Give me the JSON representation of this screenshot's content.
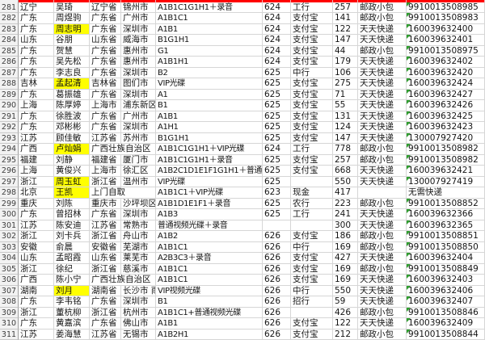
{
  "colors": {
    "highlight_yellow": "#ffff00",
    "text_flag_green": "#2f9e2f",
    "top_partial_row_red": "#ff0000",
    "gridline": "#d6d6d6"
  },
  "top_partial_row": {
    "fill": "#ff0000",
    "note_visible_pixels": "bottom sliver of red-filled cells of row above"
  },
  "rows": [
    {
      "n": "281",
      "prov": "辽宁",
      "name": "吴琦",
      "hl": false,
      "addr1": "辽宁省",
      "addr2": "锦州市",
      "span": false,
      "items": "A1B1C1G1H1＋录音",
      "batch": "624",
      "pay": "工行",
      "amt": "257",
      "ship": "邮政小包",
      "trk": "9910013508985",
      "flag": true
    },
    {
      "n": "282",
      "prov": "广东",
      "name": "周煜驹",
      "hl": false,
      "addr1": "广东省",
      "addr2": "广州市",
      "span": false,
      "items": "A1B1C1",
      "batch": "624",
      "pay": "支付宝",
      "amt": "141",
      "ship": "邮政小包",
      "trk": "9910013508983",
      "flag": true
    },
    {
      "n": "283",
      "prov": "广东",
      "name": "周志明",
      "hl": true,
      "addr1": "广东省",
      "addr2": "深圳市",
      "span": false,
      "items": "A1B1",
      "batch": "624",
      "pay": "支付宝",
      "amt": "122",
      "ship": "天天快递",
      "trk": "160039632400",
      "flag": true
    },
    {
      "n": "284",
      "prov": "山东",
      "name": "谷朋",
      "hl": false,
      "addr1": "山东省",
      "addr2": "威海市",
      "span": false,
      "items": "B1G1H1",
      "batch": "624",
      "pay": "支付宝",
      "amt": "147",
      "ship": "天天快递",
      "trk": "160039632401",
      "flag": true
    },
    {
      "n": "285",
      "prov": "广东",
      "name": "贺慧",
      "hl": false,
      "addr1": "广东省",
      "addr2": "惠州市",
      "span": false,
      "items": "G1",
      "batch": "624",
      "pay": "支付宝",
      "amt": "44",
      "ship": "邮政小包",
      "trk": "9910013508975",
      "flag": true
    },
    {
      "n": "286",
      "prov": "广东",
      "name": "吴先松",
      "hl": false,
      "addr1": "广东省",
      "addr2": "惠州市",
      "span": false,
      "items": "A1B1H1",
      "batch": "624",
      "pay": "支付宝",
      "amt": "179",
      "ship": "天天快递",
      "trk": "160039632402",
      "flag": true
    },
    {
      "n": "287",
      "prov": "广东",
      "name": "李志良",
      "hl": false,
      "addr1": "广东省",
      "addr2": "深圳市",
      "span": false,
      "items": "B2",
      "batch": "625",
      "pay": "中行",
      "amt": "106",
      "ship": "天天快递",
      "trk": "160039632420",
      "flag": true
    },
    {
      "n": "288",
      "prov": "吉林",
      "name": "孟起清",
      "hl": true,
      "addr1": "吉林省",
      "addr2": "图们市",
      "span": false,
      "items": "VIP光碟",
      "batch": "625",
      "pay": "支付宝",
      "amt": "275",
      "ship": "天天快递",
      "trk": "160039632424",
      "flag": true
    },
    {
      "n": "289",
      "prov": "广东",
      "name": "葛振雄",
      "hl": false,
      "addr1": "广东省",
      "addr2": "深圳市",
      "span": false,
      "items": "A1",
      "batch": "625",
      "pay": "支付宝",
      "amt": "71",
      "ship": "天天快递",
      "trk": "160039632427",
      "flag": true
    },
    {
      "n": "290",
      "prov": "上海",
      "name": "陈厚婷",
      "hl": false,
      "addr1": "上海市",
      "addr2": "浦东新区",
      "span": false,
      "items": "B1",
      "batch": "625",
      "pay": "支付宝",
      "amt": "55",
      "ship": "天天快递",
      "trk": "160039632426",
      "flag": true
    },
    {
      "n": "291",
      "prov": "广东",
      "name": "徐胜波",
      "hl": false,
      "addr1": "广东省",
      "addr2": "广州市",
      "span": false,
      "items": "A1B1",
      "batch": "625",
      "pay": "支付宝",
      "amt": "131",
      "ship": "天天快递",
      "trk": "160039632425",
      "flag": true
    },
    {
      "n": "292",
      "prov": "广东",
      "name": "邓彬彬",
      "hl": false,
      "addr1": "广东省",
      "addr2": "深圳市",
      "span": false,
      "items": "A1H1",
      "batch": "625",
      "pay": "支付宝",
      "amt": "124",
      "ship": "天天快递",
      "trk": "160039632423",
      "flag": true
    },
    {
      "n": "293",
      "prov": "江苏",
      "name": "顾佳敏",
      "hl": false,
      "addr1": "江苏省",
      "addr2": "苏州市",
      "span": false,
      "items": "B1G1H1",
      "batch": "625",
      "pay": "支付宝",
      "amt": "147",
      "ship": "天天快递",
      "trk": "130007927420",
      "flag": true
    },
    {
      "n": "294",
      "prov": "广西",
      "name": "卢灿娟",
      "hl": true,
      "addr1": "广西壮族自治区",
      "addr2": "",
      "span": true,
      "items": "A1B1C1G1H1＋VIP光碟",
      "batch": "624",
      "pay": "工行",
      "amt": "778",
      "ship": "邮政小包",
      "trk": "9910013508982",
      "flag": true
    },
    {
      "n": "295",
      "prov": "福建",
      "name": "刘静",
      "hl": false,
      "addr1": "福建省",
      "addr2": "厦门市",
      "span": false,
      "items": "A1B1C1G1H1＋录音",
      "batch": "625",
      "pay": "支付宝",
      "amt": "257",
      "ship": "邮政小包",
      "trk": "9910013508982",
      "flag": true
    },
    {
      "n": "296",
      "prov": "上海",
      "name": "黄俊兴",
      "hl": false,
      "addr1": "上海市",
      "addr2": "徐汇区",
      "span": false,
      "items": "A1B2C1D1E1F1G1H1＋普通视频光碟",
      "batch": "625",
      "pay": "支付宝",
      "amt": "668",
      "ship": "天天快递",
      "trk": "160039632421",
      "flag": true
    },
    {
      "n": "297",
      "prov": "浙江",
      "name": "周玉虹",
      "hl": true,
      "addr1": "浙江省",
      "addr2": "温州市",
      "span": false,
      "items": "VIP光碟",
      "batch": "625",
      "pay": "",
      "amt": "550",
      "ship": "天天快递",
      "trk": "130007927419",
      "flag": true
    },
    {
      "n": "298",
      "prov": "北京",
      "name": "王凯",
      "hl": true,
      "addr1": "上门自取",
      "addr2": "",
      "span": true,
      "items": "A1B1C1＋VIP光碟",
      "batch": "623",
      "pay": "现金",
      "amt": "417",
      "ship": "",
      "trk": "无需快递",
      "flag": false
    },
    {
      "n": "299",
      "prov": "重庆",
      "name": "刘陈",
      "hl": false,
      "addr1": "重庆市",
      "addr2": "沙坪坝区",
      "span": false,
      "items": "A1B1D1E1F1＋录音",
      "batch": "625",
      "pay": "农行",
      "amt": "223",
      "ship": "邮政小包",
      "trk": "9910013508852",
      "flag": true
    },
    {
      "n": "300",
      "prov": "广东",
      "name": "曾招林",
      "hl": false,
      "addr1": "广东省",
      "addr2": "深圳市",
      "span": false,
      "items": "A1B3",
      "batch": "625",
      "pay": "工行",
      "amt": "241",
      "ship": "天天快递",
      "trk": "160039632366",
      "flag": true
    },
    {
      "n": "301",
      "prov": "江苏",
      "name": "陈安迪",
      "hl": false,
      "addr1": "江苏省",
      "addr2": "常熟市",
      "span": false,
      "items": "普通视频光碟＋录音",
      "batch": "",
      "pay": "",
      "amt": "300",
      "ship": "天天快递",
      "trk": "160039632365",
      "flag": true
    },
    {
      "n": "302",
      "prov": "浙江",
      "name": "刘卡兵",
      "hl": false,
      "addr1": "浙江省",
      "addr2": "舟山市",
      "span": false,
      "items": "A1B2",
      "batch": "626",
      "pay": "支付宝",
      "amt": "186",
      "ship": "邮政小包",
      "trk": "9910013508851",
      "flag": true
    },
    {
      "n": "303",
      "prov": "安徽",
      "name": "俞晨",
      "hl": false,
      "addr1": "安徽省",
      "addr2": "芜湖市",
      "span": false,
      "items": "A1B1C1",
      "batch": "626",
      "pay": "中行",
      "amt": "169",
      "ship": "邮政小包",
      "trk": "9910013508850",
      "flag": true
    },
    {
      "n": "304",
      "prov": "山东",
      "name": "孟昭霞",
      "hl": false,
      "addr1": "山东省",
      "addr2": "莱芜市",
      "span": false,
      "items": "A2B3C3＋录音",
      "batch": "626",
      "pay": "支付宝",
      "amt": "427",
      "ship": "天天快递",
      "trk": "160039632404",
      "flag": true
    },
    {
      "n": "305",
      "prov": "浙江",
      "name": "徐纪",
      "hl": false,
      "addr1": "浙江省",
      "addr2": "慈溪市",
      "span": false,
      "items": "A1B1C1",
      "batch": "626",
      "pay": "支付宝",
      "amt": "169",
      "ship": "邮政小包",
      "trk": "9910013508849",
      "flag": true
    },
    {
      "n": "306",
      "prov": "广西",
      "name": "陈小宁",
      "hl": false,
      "addr1": "广西壮族自治区",
      "addr2": "",
      "span": true,
      "items": "A1B1C1",
      "batch": "626",
      "pay": "支付宝",
      "amt": "169",
      "ship": "天天快递",
      "trk": "160039632403",
      "flag": true
    },
    {
      "n": "307",
      "prov": "湖南",
      "name": "刘月",
      "hl": true,
      "addr1": "湖南省",
      "addr2": "长沙市 雨花区",
      "span": false,
      "items": "VIP视频光碟",
      "batch": "626",
      "pay": "中行",
      "amt": "550",
      "ship": "天天快递",
      "trk": "160039632406",
      "flag": true
    },
    {
      "n": "308",
      "prov": "广东",
      "name": "李韦铭",
      "hl": false,
      "addr1": "广东省",
      "addr2": "深圳市",
      "span": false,
      "items": "B1",
      "batch": "626",
      "pay": "招行",
      "amt": "59",
      "ship": "天天快递",
      "trk": "160039632407",
      "flag": true
    },
    {
      "n": "309",
      "prov": "浙江",
      "name": "董杭柳",
      "hl": false,
      "addr1": "浙江省",
      "addr2": "杭州市",
      "span": false,
      "items": "A1B1C1+普通视频光碟",
      "batch": "626",
      "pay": "",
      "amt": "426",
      "ship": "邮政小包",
      "trk": "9910013508846",
      "flag": true
    },
    {
      "n": "310",
      "prov": "广东",
      "name": "黄嘉滨",
      "hl": false,
      "addr1": "广东省",
      "addr2": "佛山市",
      "span": false,
      "items": "A1B1",
      "batch": "626",
      "pay": "支付宝",
      "amt": "122",
      "ship": "天天快递",
      "trk": "160039632409",
      "flag": true
    },
    {
      "n": "311",
      "prov": "江苏",
      "name": "姜海慧",
      "hl": false,
      "addr1": "江苏省",
      "addr2": "无锡市",
      "span": false,
      "items": "A1B2H1",
      "batch": "626",
      "pay": "支付宝",
      "amt": "212",
      "ship": "邮政小包",
      "trk": "9910013508844",
      "flag": true
    }
  ]
}
